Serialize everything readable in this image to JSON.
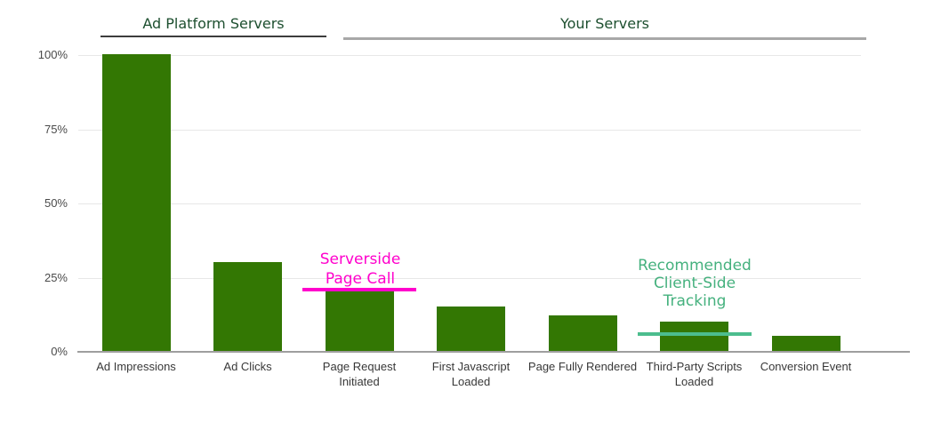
{
  "chart_data": {
    "type": "bar",
    "title": "",
    "categories": [
      "Ad Impressions",
      "Ad Clicks",
      "Page Request Initiated",
      "First Javascript Loaded",
      "Page Fully Rendered",
      "Third-Party Scripts Loaded",
      "Conversion Event"
    ],
    "values": [
      100,
      30,
      20,
      15,
      12,
      10,
      5
    ],
    "bar_color": "#337703",
    "ylim": [
      0,
      100
    ],
    "grid": "horizontal",
    "y_ticks": [
      {
        "label": "100%",
        "value": 100
      },
      {
        "label": "75%",
        "value": 75
      },
      {
        "label": "50%",
        "value": 50
      },
      {
        "label": "25%",
        "value": 25
      },
      {
        "label": "0%",
        "value": 0
      }
    ],
    "title_color": "#1d4f2f",
    "groups": [
      {
        "label": "Ad Platform Servers",
        "first_bar": 0,
        "last_bar": 1
      },
      {
        "label": "Your Servers",
        "first_bar": 2,
        "last_bar": 6
      }
    ],
    "annotations": [
      {
        "text": "Serverside Page Call",
        "lines": [
          "Serverside",
          "Page Call"
        ],
        "text_color": "#ff00cc",
        "line_color": "#ff00cc",
        "marker_value": 21,
        "bar_index": 2
      },
      {
        "text": "Recommended Client-Side Tracking",
        "lines": [
          "Recommended",
          "Client-Side",
          "Tracking"
        ],
        "text_color": "#45b17e",
        "line_color": "#4cbd8e",
        "marker_value": 6,
        "bar_index": 5
      }
    ]
  }
}
